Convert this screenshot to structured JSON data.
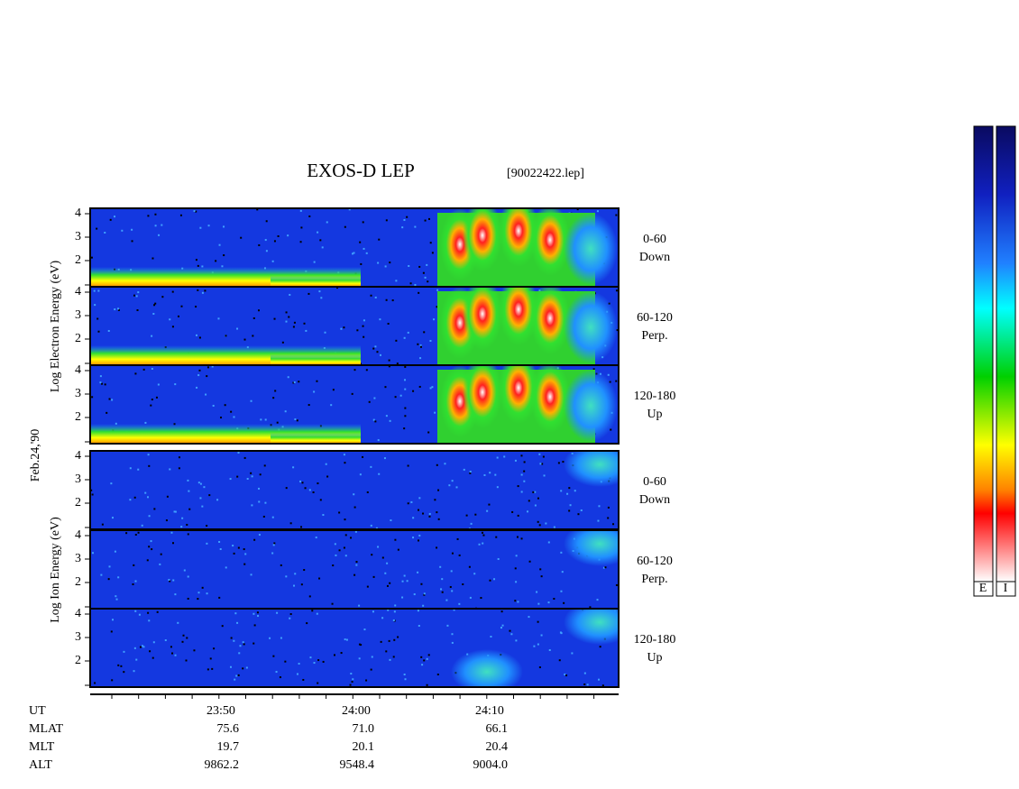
{
  "title": "EXOS-D LEP",
  "file": "[90022422.lep]",
  "date": "Feb.24,'90",
  "electron_label": "Log Electron Energy (eV)",
  "ion_label": "Log Ion Energy (eV)",
  "panels": [
    {
      "angle": "0-60",
      "direction": "Down"
    },
    {
      "angle": "60-120",
      "direction": "Perp."
    },
    {
      "angle": "120-180",
      "direction": "Up"
    },
    {
      "angle": "0-60",
      "direction": "Down"
    },
    {
      "angle": "60-120",
      "direction": "Perp."
    },
    {
      "angle": "120-180",
      "direction": "Up"
    }
  ],
  "yticks": [
    2,
    3,
    4
  ],
  "ephemeris": [
    {
      "label": "UT",
      "values": [
        "23:50",
        "24:00",
        "24:10"
      ]
    },
    {
      "label": "MLAT",
      "values": [
        "75.6",
        "71.0",
        "66.1"
      ]
    },
    {
      "label": "MLT",
      "values": [
        "19.7",
        "20.1",
        "20.4"
      ]
    },
    {
      "label": "ALT",
      "values": [
        "9862.2",
        "9548.4",
        "9004.0"
      ]
    }
  ],
  "colorbar_labels": [
    "E",
    "I"
  ]
}
